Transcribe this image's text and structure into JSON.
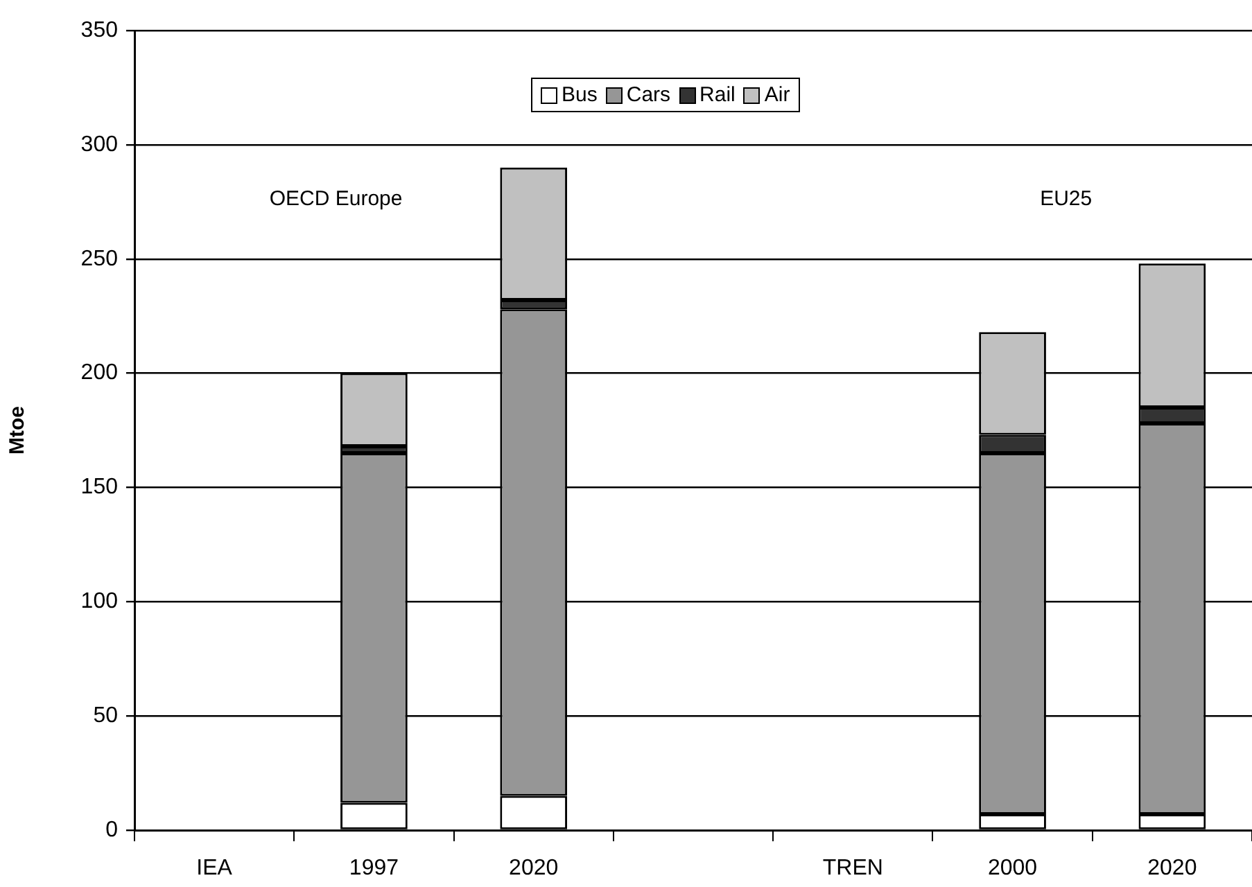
{
  "chart_data": {
    "type": "bar",
    "stacked": true,
    "ylabel": "Mtoe",
    "categories": [
      "IEA",
      "1997",
      "2020",
      null,
      "TREN",
      "2000",
      "2020"
    ],
    "series": [
      {
        "name": "Bus",
        "color": "#ffffff",
        "values": [
          null,
          12,
          15,
          null,
          null,
          7,
          7
        ]
      },
      {
        "name": "Cars",
        "color": "#969696",
        "values": [
          null,
          153,
          213,
          null,
          null,
          158,
          171
        ]
      },
      {
        "name": "Rail",
        "color": "#333333",
        "values": [
          null,
          3,
          4,
          null,
          null,
          8,
          7
        ]
      },
      {
        "name": "Air",
        "color": "#c0c0c0",
        "values": [
          null,
          32,
          58,
          null,
          null,
          45,
          63
        ]
      }
    ],
    "ylim": [
      0,
      350
    ],
    "yticks": [
      0,
      50,
      100,
      150,
      200,
      250,
      300,
      350
    ],
    "grid": "y",
    "legend": "top",
    "annotations": [
      "OECD Europe",
      "EU25"
    ]
  }
}
